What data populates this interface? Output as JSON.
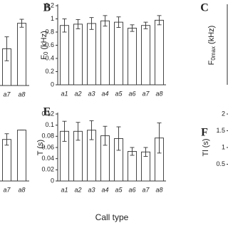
{
  "chart_data": [
    {
      "type": "bar",
      "categories": [
        "a7",
        "a8"
      ],
      "values": [
        0.46,
        0.78
      ],
      "errors": [
        0.15,
        0.05
      ],
      "ylim": [
        0,
        1
      ],
      "color": "#ffffff"
    },
    {
      "type": "bar",
      "panel": "B",
      "ylabel": {
        "text": "F",
        "sub": "0",
        "unit": " (kHz)"
      },
      "categories": [
        "a1",
        "a2",
        "a3",
        "a4",
        "a5",
        "a6",
        "a7",
        "a8"
      ],
      "values": [
        0.9,
        0.92,
        0.93,
        0.97,
        0.95,
        0.86,
        0.9,
        0.98
      ],
      "errors": [
        0.1,
        0.07,
        0.09,
        0.08,
        0.08,
        0.05,
        0.05,
        0.07
      ],
      "ylim": [
        0,
        1.2
      ],
      "yticks": [
        0,
        0.2,
        0.4,
        0.6,
        0.8,
        1,
        1.2
      ],
      "color": "#ffffff"
    },
    {
      "type": "bar",
      "panel": "C",
      "ylabel": {
        "text": "F",
        "sub": "0max",
        "unit": " (kHz)"
      }
    },
    {
      "type": "bar",
      "categories": [
        "a7",
        "a8"
      ],
      "values": [
        0.62,
        0.76
      ],
      "errors": [
        0.085,
        0
      ],
      "ylim": [
        0,
        1
      ],
      "color": "#ffffff"
    },
    {
      "type": "bar",
      "panel": "E",
      "ylabel": "T (s)",
      "xlabel": "Call type",
      "categories": [
        "a1",
        "a2",
        "a3",
        "a4",
        "a5",
        "a6",
        "a7",
        "a8"
      ],
      "values": [
        0.089,
        0.089,
        0.091,
        0.081,
        0.076,
        0.053,
        0.052,
        0.077
      ],
      "errors": [
        0.018,
        0.016,
        0.017,
        0.017,
        0.021,
        0.007,
        0.008,
        0.027
      ],
      "ylim": [
        0,
        0.12
      ],
      "yticks": [
        0,
        0.02,
        0.04,
        0.06,
        0.08,
        0.1,
        0.12
      ],
      "color": "#ffffff"
    },
    {
      "type": "bar",
      "panel": "F",
      "ylabel": "Tl (s)",
      "ylim": [
        0,
        2
      ],
      "yticks": [
        0.5,
        1,
        1.5,
        2
      ]
    }
  ]
}
